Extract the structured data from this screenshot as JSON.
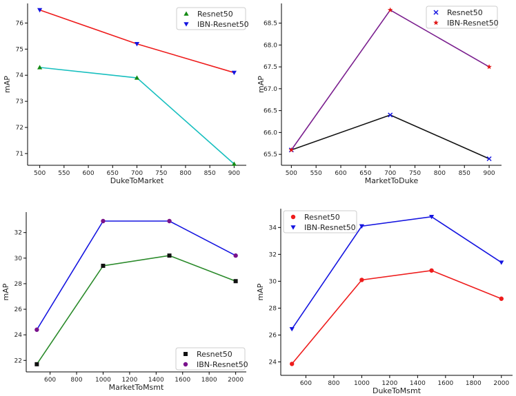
{
  "chart_data": [
    {
      "type": "line",
      "xlabel": "DukeToMarket",
      "ylabel": "mAP",
      "x": [
        500,
        700,
        900
      ],
      "xlim": [
        475,
        925
      ],
      "ylim": [
        70.55,
        76.75
      ],
      "xticks": [
        500,
        550,
        600,
        650,
        700,
        750,
        800,
        850,
        900
      ],
      "yticks": [
        71,
        72,
        73,
        74,
        75,
        76
      ],
      "legend_position": "top-right",
      "series": [
        {
          "name": "Resnet50",
          "values": [
            74.3,
            73.9,
            70.6
          ],
          "line_color": "#17bfbf",
          "marker_color": "#138a13",
          "marker": "triangle-up"
        },
        {
          "name": "IBN-Resnet50",
          "values": [
            76.5,
            75.2,
            74.1
          ],
          "line_color": "#ee1c1c",
          "marker_color": "#1414e0",
          "marker": "triangle-down"
        }
      ]
    },
    {
      "type": "line",
      "xlabel": "MarketToDuke",
      "ylabel": "mAP",
      "x": [
        500,
        700,
        900
      ],
      "xlim": [
        480,
        925
      ],
      "ylim": [
        65.25,
        68.95
      ],
      "xticks": [
        500,
        550,
        600,
        650,
        700,
        750,
        800,
        850,
        900
      ],
      "yticks": [
        "65.5",
        "66.0",
        "66.5",
        "67.0",
        "67.5",
        "68.0",
        "68.5"
      ],
      "legend_position": "top-right",
      "series": [
        {
          "name": "Resnet50",
          "values": [
            65.6,
            66.4,
            65.4
          ],
          "line_color": "#111111",
          "marker_color": "#1414e0",
          "marker": "x"
        },
        {
          "name": "IBN-Resnet50",
          "values": [
            65.6,
            68.8,
            67.5
          ],
          "line_color": "#7a1e8e",
          "marker_color": "#e01414",
          "marker": "star"
        }
      ]
    },
    {
      "type": "line",
      "xlabel": "MarketToMsmt",
      "ylabel": "mAP",
      "x": [
        500,
        1000,
        1500,
        2000
      ],
      "xlim": [
        420,
        2080
      ],
      "ylim": [
        21.1,
        33.6
      ],
      "xticks": [
        600,
        800,
        1000,
        1200,
        1400,
        1600,
        1800,
        2000
      ],
      "yticks": [
        22,
        24,
        26,
        28,
        30,
        32
      ],
      "legend_position": "bottom-right",
      "series": [
        {
          "name": "Resnet50",
          "values": [
            21.7,
            29.4,
            30.2,
            28.2
          ],
          "line_color": "#2a8a2a",
          "marker_color": "#111111",
          "marker": "square"
        },
        {
          "name": "IBN-Resnet50",
          "values": [
            24.4,
            32.9,
            32.9,
            30.2
          ],
          "line_color": "#1414e0",
          "marker_color": "#7a128c",
          "marker": "circle"
        }
      ]
    },
    {
      "type": "line",
      "xlabel": "DukeToMsmt",
      "ylabel": "mAP",
      "x": [
        500,
        1000,
        1500,
        2000
      ],
      "xlim": [
        420,
        2080
      ],
      "ylim": [
        23.0,
        35.4
      ],
      "xticks": [
        600,
        800,
        1000,
        1200,
        1400,
        1600,
        1800,
        2000
      ],
      "yticks": [
        24,
        26,
        28,
        30,
        32,
        34
      ],
      "legend_position": "top-left",
      "series": [
        {
          "name": "Resnet50",
          "values": [
            23.85,
            30.1,
            30.8,
            28.7
          ],
          "line_color": "#ee1c1c",
          "marker_color": "#ee1c1c",
          "marker": "circle"
        },
        {
          "name": "IBN-Resnet50",
          "values": [
            26.45,
            34.1,
            34.8,
            31.4
          ],
          "line_color": "#1414e0",
          "marker_color": "#1414e0",
          "marker": "triangle-down"
        }
      ]
    }
  ]
}
